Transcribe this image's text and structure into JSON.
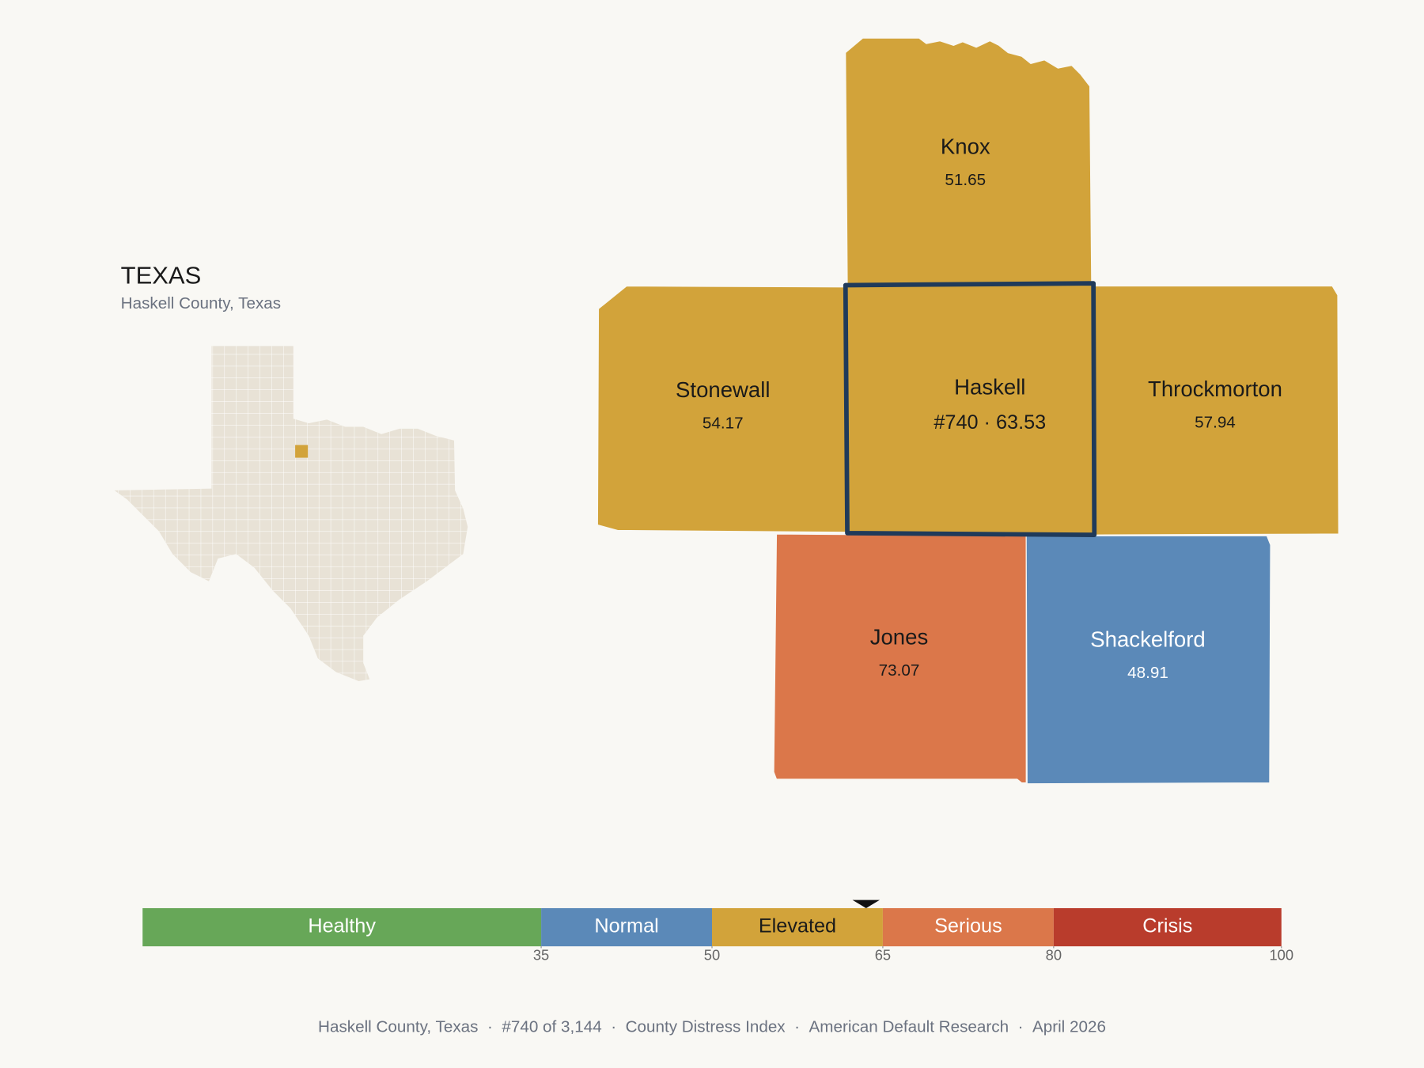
{
  "header": {
    "title": "TEXAS",
    "subtitle": "Haskell County, Texas"
  },
  "counties": [
    {
      "name": "Knox",
      "value": 51.65
    },
    {
      "name": "Stonewall",
      "value": 54.17
    },
    {
      "name": "Haskell",
      "rank": "#740",
      "value": 63.53,
      "selected": true
    },
    {
      "name": "Throckmorton",
      "value": 57.94
    },
    {
      "name": "Jones",
      "value": 73.07
    },
    {
      "name": "Shackelford",
      "value": 48.91
    }
  ],
  "separator": "·",
  "scale": {
    "lim": [
      0,
      100
    ],
    "ticks": [
      35,
      50,
      65,
      80,
      100
    ],
    "segments": [
      {
        "label": "Healthy",
        "color": "#67a758"
      },
      {
        "label": "Normal",
        "color": "#5b89b8"
      },
      {
        "label": "Elevated",
        "color": "#d2a33a"
      },
      {
        "label": "Serious",
        "color": "#db774a"
      },
      {
        "label": "Crisis",
        "color": "#b93c2c"
      }
    ]
  },
  "footer": [
    "Haskell County, Texas",
    "#740 of 3,144",
    "County Distress Index",
    "American Default Research",
    "April 2026"
  ]
}
